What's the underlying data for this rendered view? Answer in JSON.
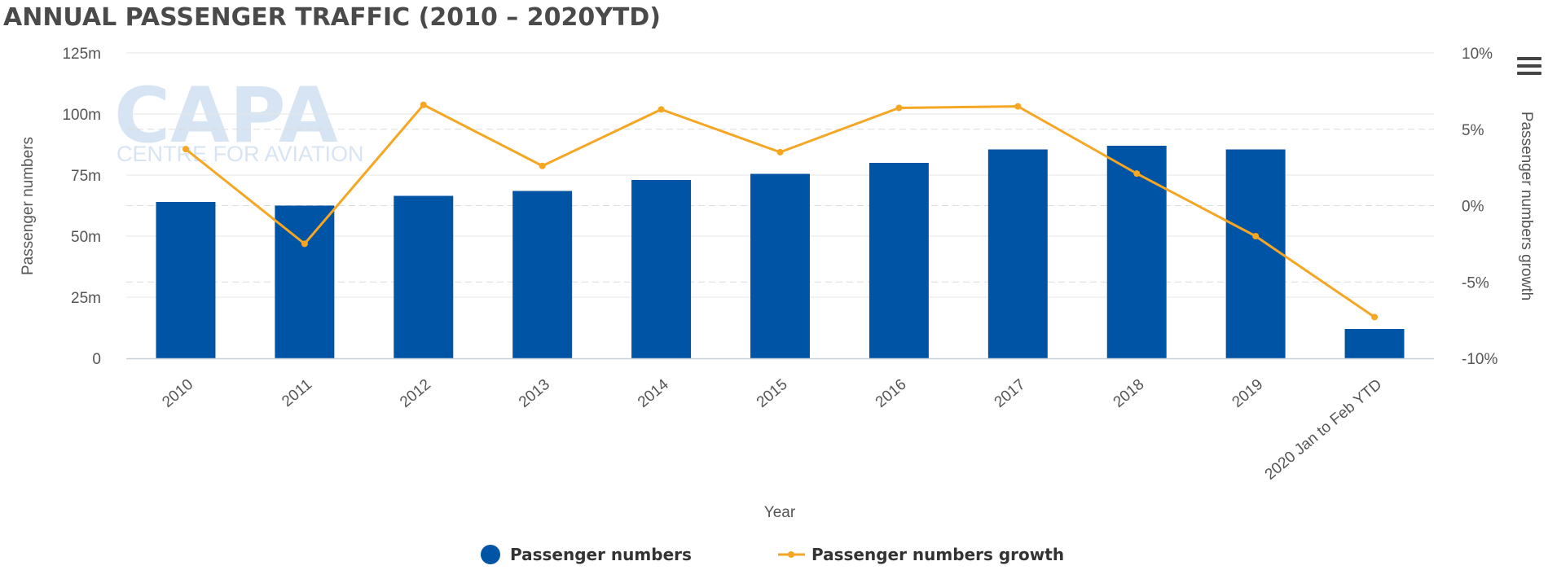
{
  "title": "ANNUAL PASSENGER TRAFFIC (2010 – 2020YTD)",
  "watermark": {
    "main": "CAPA",
    "sub": "CENTRE FOR AVIATION"
  },
  "menu_icon": "hamburger-menu-icon",
  "colors": {
    "bars": "#0054a6",
    "line": "#f5a623",
    "grid": "#e6e6e6",
    "text": "#555555"
  },
  "chart_data": {
    "type": "bar",
    "categories": [
      "2010",
      "2011",
      "2012",
      "2013",
      "2014",
      "2015",
      "2016",
      "2017",
      "2018",
      "2019",
      "2020 Jan to Feb YTD"
    ],
    "series": [
      {
        "name": "Passenger numbers",
        "type": "bar",
        "axis": "left",
        "values": [
          64,
          62.5,
          66.5,
          68.5,
          73,
          75.5,
          80,
          85.5,
          87,
          85.5,
          12
        ]
      },
      {
        "name": "Passenger numbers growth",
        "type": "line",
        "axis": "right",
        "values": [
          3.7,
          -2.5,
          6.6,
          2.6,
          6.3,
          3.5,
          6.4,
          6.5,
          2.1,
          -2.0,
          -7.3
        ]
      }
    ],
    "xlabel": "Year",
    "ylabel": "Passenger numbers",
    "y2label": "Passenger numbers growth",
    "ylim": [
      0,
      125
    ],
    "y2lim": [
      -10,
      10
    ],
    "yticks": [
      "0",
      "25m",
      "50m",
      "75m",
      "100m",
      "125m"
    ],
    "y2ticks": [
      "-10%",
      "-5%",
      "0%",
      "5%",
      "10%"
    ],
    "grid": true,
    "legend": "bottom-center"
  }
}
